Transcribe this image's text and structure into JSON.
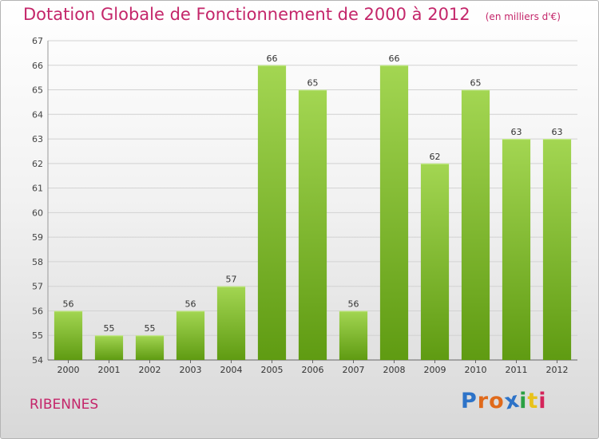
{
  "header": {
    "title": "Dotation Globale de Fonctionnement de 2000 à 2012",
    "unit": "(en milliers d'€)"
  },
  "footer": {
    "commune": "RIBENNES",
    "logo": {
      "letters": [
        "P",
        "r",
        "o",
        "x",
        "i",
        "t",
        "i"
      ],
      "colors": [
        "#2d73c8",
        "#e06a1b",
        "#e06a1b",
        "#2d73c8",
        "#2aa043",
        "#e8c21a",
        "#d4245a"
      ]
    }
  },
  "colors": {
    "title": "#c4266a",
    "bar_light": "#a3d652",
    "bar_dark": "#5f9b12",
    "grid": "#d2d2d2"
  },
  "chart_data": {
    "type": "bar",
    "title": "Dotation Globale de Fonctionnement de 2000 à 2012",
    "subtitle": "(en milliers d'€)",
    "categories": [
      "2000",
      "2001",
      "2002",
      "2003",
      "2004",
      "2005",
      "2006",
      "2007",
      "2008",
      "2009",
      "2010",
      "2011",
      "2012"
    ],
    "values": [
      56,
      55,
      55,
      56,
      57,
      66,
      65,
      56,
      66,
      62,
      65,
      63,
      63
    ],
    "ylim": [
      54,
      67
    ],
    "yticks": [
      54,
      55,
      56,
      57,
      58,
      59,
      60,
      61,
      62,
      63,
      64,
      65,
      66,
      67
    ],
    "grid": true,
    "data_labels": true
  }
}
